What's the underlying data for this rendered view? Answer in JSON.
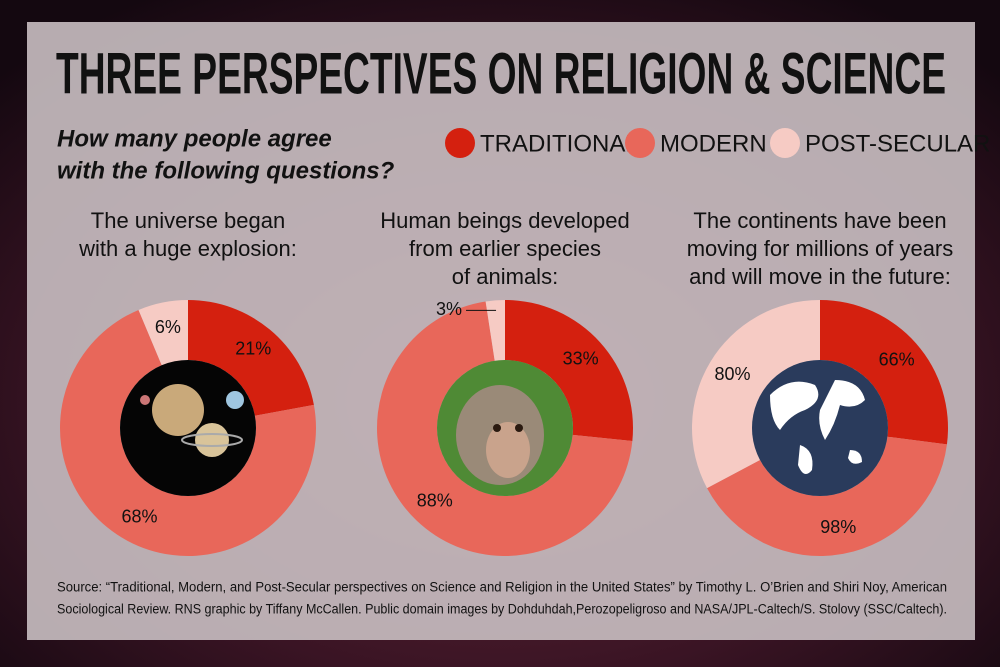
{
  "title": "THREE PERSPECTIVES ON RELIGION & SCIENCE",
  "subtitle": [
    "How many people agree",
    "with the following questions?"
  ],
  "legend": {
    "labels": [
      "TRADITIONAL",
      "MODERN",
      "POST-SECULAR"
    ],
    "colors": [
      "#d4200f",
      "#e8675a",
      "#f6cbc4"
    ]
  },
  "chart_data": [
    {
      "type": "donut",
      "title": [
        "The universe began",
        "with a huge explosion:"
      ],
      "values": [
        21,
        68,
        6
      ],
      "value_labels": [
        "21%",
        "68%",
        "6%"
      ]
    },
    {
      "type": "donut",
      "title": [
        "Human beings developed",
        "from earlier species",
        "of animals:"
      ],
      "values": [
        33,
        88,
        3
      ],
      "value_labels": [
        "33%",
        "88%",
        "3%"
      ]
    },
    {
      "type": "donut",
      "title": [
        "The continents have been",
        "moving for millions of years",
        "and will move in the future:"
      ],
      "values": [
        66,
        98,
        80
      ],
      "value_labels": [
        "66%",
        "98%",
        "80%"
      ]
    }
  ],
  "source": [
    "Source: “Traditional, Modern, and Post-Secular perspectives on Science and Religion in the United States” by Timothy L. O’Brien and Shiri Noy, American",
    "Sociological Review. RNS graphic by Tiffany McCallen. Public domain images by Dohduhdah,Perozopeligroso and NASA/JPL-Caltech/S. Stolovy (SSC/Caltech)."
  ]
}
